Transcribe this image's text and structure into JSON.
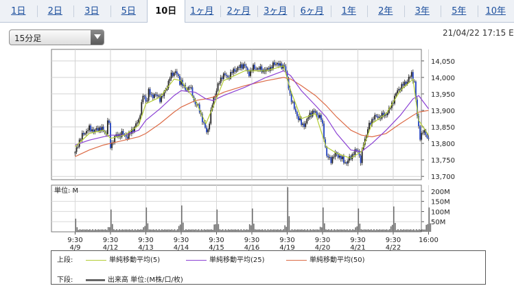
{
  "tabs": [
    {
      "label": "1日",
      "active": false
    },
    {
      "label": "2日",
      "active": false
    },
    {
      "label": "3日",
      "active": false
    },
    {
      "label": "5日",
      "active": false
    },
    {
      "label": "10日",
      "active": true
    },
    {
      "label": "1ヶ月",
      "active": false
    },
    {
      "label": "2ヶ月",
      "active": false
    },
    {
      "label": "3ヶ月",
      "active": false
    },
    {
      "label": "6ヶ月",
      "active": false
    },
    {
      "label": "1年",
      "active": false
    },
    {
      "label": "2年",
      "active": false
    },
    {
      "label": "3年",
      "active": false
    },
    {
      "label": "5年",
      "active": false
    },
    {
      "label": "10年",
      "active": false
    }
  ],
  "interval_select": {
    "value": "15分足"
  },
  "timestamp": "21/04/22 17:15 E",
  "legend": {
    "upper_label": "上段:",
    "ma5": "単純移動平均(5)",
    "ma25": "単純移動平均(25)",
    "ma50": "単純移動平均(50)",
    "lower_label": "下段:",
    "volume": "出来高 単位:(M株/口/枚)"
  },
  "colors": {
    "ma5": "#b3cc33",
    "ma25": "#8a3fd4",
    "ma50": "#dc6a45",
    "candle": "#1f1f1f",
    "volume": "#6e6e6e"
  },
  "chart_data": [
    {
      "type": "candlestick",
      "y_ticks": [
        "14,050",
        "14,000",
        "13,950",
        "13,900",
        "13,850",
        "13,800",
        "13,750",
        "13,700"
      ],
      "ylim": [
        13690,
        14085
      ],
      "x_ticks": [
        {
          "time": "9:30",
          "date": "4/9"
        },
        {
          "time": "9:30",
          "date": "4/12"
        },
        {
          "time": "9:30",
          "date": "4/13"
        },
        {
          "time": "9:30",
          "date": "4/14"
        },
        {
          "time": "9:30",
          "date": "4/15"
        },
        {
          "time": "9:30",
          "date": "4/16"
        },
        {
          "time": "9:30",
          "date": "4/19"
        },
        {
          "time": "9:30",
          "date": "4/20"
        },
        {
          "time": "9:30",
          "date": "4/21"
        },
        {
          "time": "9:30",
          "date": "4/22"
        },
        {
          "time": "16:00",
          "date": ""
        }
      ],
      "grid": true,
      "close_path": [
        [
          0,
          13770
        ],
        [
          0.5,
          13805
        ],
        [
          1.2,
          13830
        ],
        [
          2,
          13845
        ],
        [
          2.8,
          13838
        ],
        [
          3.5,
          13848
        ],
        [
          4.4,
          13830
        ],
        [
          4.7,
          13895
        ],
        [
          4.9,
          13810
        ],
        [
          5.0,
          13790
        ],
        [
          5.6,
          13820
        ],
        [
          6.6,
          13830
        ],
        [
          7.4,
          13820
        ],
        [
          8.4,
          13850
        ],
        [
          9.0,
          13870
        ],
        [
          9.6,
          13945
        ],
        [
          10.1,
          13925
        ],
        [
          10.4,
          13960
        ],
        [
          10.8,
          13940
        ],
        [
          11.2,
          13950
        ],
        [
          12.0,
          13935
        ],
        [
          12.7,
          13955
        ],
        [
          13.4,
          14000
        ],
        [
          14.2,
          14020
        ],
        [
          14.8,
          13985
        ],
        [
          15.0,
          13990
        ],
        [
          15.6,
          13960
        ],
        [
          16.2,
          13975
        ],
        [
          16.8,
          13930
        ],
        [
          17.4,
          13910
        ],
        [
          17.9,
          13880
        ],
        [
          18.3,
          13850
        ],
        [
          18.7,
          13830
        ],
        [
          19.5,
          13930
        ],
        [
          20.2,
          13975
        ],
        [
          20.9,
          14010
        ],
        [
          21.6,
          14000
        ],
        [
          22.4,
          14020
        ],
        [
          23.2,
          14030
        ],
        [
          23.9,
          14040
        ],
        [
          24.5,
          14010
        ],
        [
          25.2,
          14030
        ],
        [
          26.1,
          14025
        ],
        [
          27.0,
          14020
        ],
        [
          27.9,
          14035
        ],
        [
          28.6,
          14045
        ],
        [
          29.1,
          14030
        ],
        [
          29.6,
          14040
        ],
        [
          30.0,
          13990
        ],
        [
          30.4,
          13950
        ],
        [
          30.9,
          13910
        ],
        [
          31.5,
          13880
        ],
        [
          32.1,
          13855
        ],
        [
          32.6,
          13860
        ],
        [
          33.2,
          13890
        ],
        [
          33.9,
          13895
        ],
        [
          34.6,
          13880
        ],
        [
          34.9,
          13870
        ],
        [
          35.2,
          13820
        ],
        [
          35.6,
          13760
        ],
        [
          36.2,
          13750
        ],
        [
          36.9,
          13770
        ],
        [
          37.6,
          13755
        ],
        [
          38.4,
          13740
        ],
        [
          39.0,
          13760
        ],
        [
          39.6,
          13775
        ],
        [
          40.0,
          13780
        ],
        [
          40.4,
          13745
        ],
        [
          40.8,
          13800
        ],
        [
          41.5,
          13850
        ],
        [
          42.2,
          13880
        ],
        [
          42.9,
          13880
        ],
        [
          43.6,
          13885
        ],
        [
          44.3,
          13895
        ],
        [
          45.0,
          13930
        ],
        [
          45.6,
          13960
        ],
        [
          46.3,
          13975
        ],
        [
          47.0,
          13990
        ],
        [
          47.6,
          14010
        ],
        [
          48.0,
          13985
        ],
        [
          48.4,
          13880
        ],
        [
          48.8,
          13820
        ],
        [
          49.2,
          13835
        ],
        [
          49.6,
          13830
        ],
        [
          50,
          13812
        ]
      ],
      "ma5_path": [
        [
          0,
          13790
        ],
        [
          2,
          13830
        ],
        [
          4,
          13840
        ],
        [
          5,
          13815
        ],
        [
          7,
          13825
        ],
        [
          9,
          13855
        ],
        [
          10,
          13920
        ],
        [
          12,
          13940
        ],
        [
          14,
          13995
        ],
        [
          15,
          13990
        ],
        [
          17,
          13930
        ],
        [
          18.5,
          13860
        ],
        [
          19.5,
          13910
        ],
        [
          21,
          13990
        ],
        [
          24,
          14020
        ],
        [
          27,
          14020
        ],
        [
          29.5,
          14035
        ],
        [
          30.5,
          13960
        ],
        [
          32,
          13875
        ],
        [
          34,
          13890
        ],
        [
          35.5,
          13790
        ],
        [
          37,
          13770
        ],
        [
          39,
          13755
        ],
        [
          40.5,
          13775
        ],
        [
          42,
          13860
        ],
        [
          44,
          13890
        ],
        [
          46,
          13960
        ],
        [
          47.8,
          13995
        ],
        [
          48.6,
          13870
        ],
        [
          50,
          13825
        ]
      ],
      "ma25_path": [
        [
          0,
          13795
        ],
        [
          2,
          13810
        ],
        [
          4,
          13820
        ],
        [
          5,
          13825
        ],
        [
          7,
          13825
        ],
        [
          9,
          13840
        ],
        [
          10,
          13870
        ],
        [
          12,
          13905
        ],
        [
          14,
          13945
        ],
        [
          15,
          13960
        ],
        [
          17,
          13955
        ],
        [
          18.5,
          13935
        ],
        [
          19.5,
          13930
        ],
        [
          21,
          13945
        ],
        [
          24,
          13970
        ],
        [
          27,
          14000
        ],
        [
          29.5,
          14020
        ],
        [
          30.5,
          14005
        ],
        [
          32,
          13960
        ],
        [
          34,
          13915
        ],
        [
          35.5,
          13880
        ],
        [
          37,
          13830
        ],
        [
          39,
          13780
        ],
        [
          40.5,
          13775
        ],
        [
          42,
          13800
        ],
        [
          44,
          13840
        ],
        [
          46,
          13885
        ],
        [
          47.8,
          13935
        ],
        [
          48.6,
          13945
        ],
        [
          50,
          13905
        ]
      ],
      "ma50_path": [
        [
          0,
          13760
        ],
        [
          2,
          13780
        ],
        [
          4,
          13795
        ],
        [
          5,
          13800
        ],
        [
          7,
          13810
        ],
        [
          9,
          13820
        ],
        [
          10,
          13830
        ],
        [
          12,
          13860
        ],
        [
          14,
          13895
        ],
        [
          15,
          13910
        ],
        [
          17,
          13930
        ],
        [
          18.5,
          13935
        ],
        [
          19.5,
          13940
        ],
        [
          21,
          13955
        ],
        [
          24,
          13975
        ],
        [
          27,
          13990
        ],
        [
          29.5,
          14000
        ],
        [
          30.5,
          13995
        ],
        [
          32,
          13975
        ],
        [
          34,
          13945
        ],
        [
          35.5,
          13915
        ],
        [
          37,
          13880
        ],
        [
          39,
          13840
        ],
        [
          40.5,
          13825
        ],
        [
          42,
          13820
        ],
        [
          44,
          13830
        ],
        [
          46,
          13860
        ],
        [
          47.8,
          13885
        ],
        [
          48.6,
          13895
        ],
        [
          50,
          13900
        ]
      ]
    },
    {
      "type": "bar",
      "ylabel": "単位: M",
      "y_ticks": [
        "200M",
        "150M",
        "100M",
        "50M"
      ],
      "ylim": [
        0,
        230
      ],
      "day_open_spikes": [
        65,
        110,
        120,
        130,
        110,
        115,
        220,
        120,
        115,
        125,
        120
      ]
    }
  ]
}
